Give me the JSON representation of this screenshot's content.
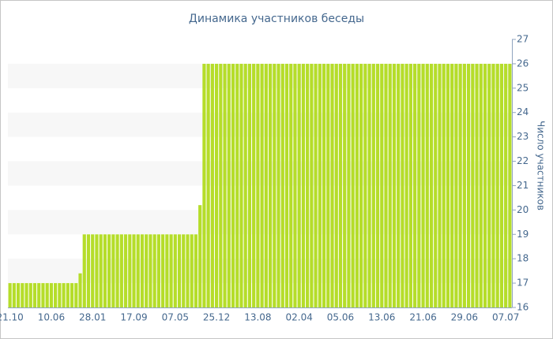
{
  "chart_data": {
    "type": "bar",
    "title": "Динамика участников беседы",
    "y_label": "Число участников",
    "categories": [
      "21.10",
      null,
      null,
      null,
      null,
      null,
      null,
      null,
      null,
      null,
      "10.06",
      null,
      null,
      null,
      null,
      null,
      null,
      null,
      null,
      null,
      "28.01",
      null,
      null,
      null,
      null,
      null,
      null,
      null,
      null,
      null,
      "17.09",
      null,
      null,
      null,
      null,
      null,
      null,
      null,
      null,
      null,
      "07.05",
      null,
      null,
      null,
      null,
      null,
      null,
      null,
      null,
      null,
      "25.12",
      null,
      null,
      null,
      null,
      null,
      null,
      null,
      null,
      null,
      "13.08",
      null,
      null,
      null,
      null,
      null,
      null,
      null,
      null,
      null,
      "02.04",
      null,
      null,
      null,
      null,
      null,
      null,
      null,
      null,
      null,
      "05.06",
      null,
      null,
      null,
      null,
      null,
      null,
      null,
      null,
      null,
      "13.06",
      null,
      null,
      null,
      null,
      null,
      null,
      null,
      null,
      null,
      "21.06",
      null,
      null,
      null,
      null,
      null,
      null,
      null,
      null,
      null,
      "29.06",
      null,
      null,
      null,
      null,
      null,
      null,
      null,
      null,
      null,
      "07.07",
      null
    ],
    "values": [
      17,
      17,
      17,
      17,
      17,
      17,
      17,
      17,
      17,
      17,
      17,
      17,
      17,
      17,
      17,
      17,
      17,
      17.4,
      19,
      19,
      19,
      19,
      19,
      19,
      19,
      19,
      19,
      19,
      19,
      19,
      19,
      19,
      19,
      19,
      19,
      19,
      19,
      19,
      19,
      19,
      19,
      19,
      19,
      19,
      19,
      19,
      20.2,
      26,
      26,
      26,
      26,
      26,
      26,
      26,
      26,
      26,
      26,
      26,
      26,
      26,
      26,
      26,
      26,
      26,
      26,
      26,
      26,
      26,
      26,
      26,
      26,
      26,
      26,
      26,
      26,
      26,
      26,
      26,
      26,
      26,
      26,
      26,
      26,
      26,
      26,
      26,
      26,
      26,
      26,
      26,
      26,
      26,
      26,
      26,
      26,
      26,
      26,
      26,
      26,
      26,
      26,
      26,
      26,
      26,
      26,
      26,
      26,
      26,
      26,
      26,
      26,
      26,
      26,
      26,
      26,
      26,
      26,
      26,
      26,
      26,
      26,
      26
    ],
    "color": "#b5dd2a",
    "ylim": [
      16,
      27
    ],
    "yticks": [
      16,
      17,
      18,
      19,
      20,
      21,
      22,
      23,
      24,
      25,
      26,
      27
    ],
    "grid": "bands",
    "y_axis_side": "right"
  }
}
